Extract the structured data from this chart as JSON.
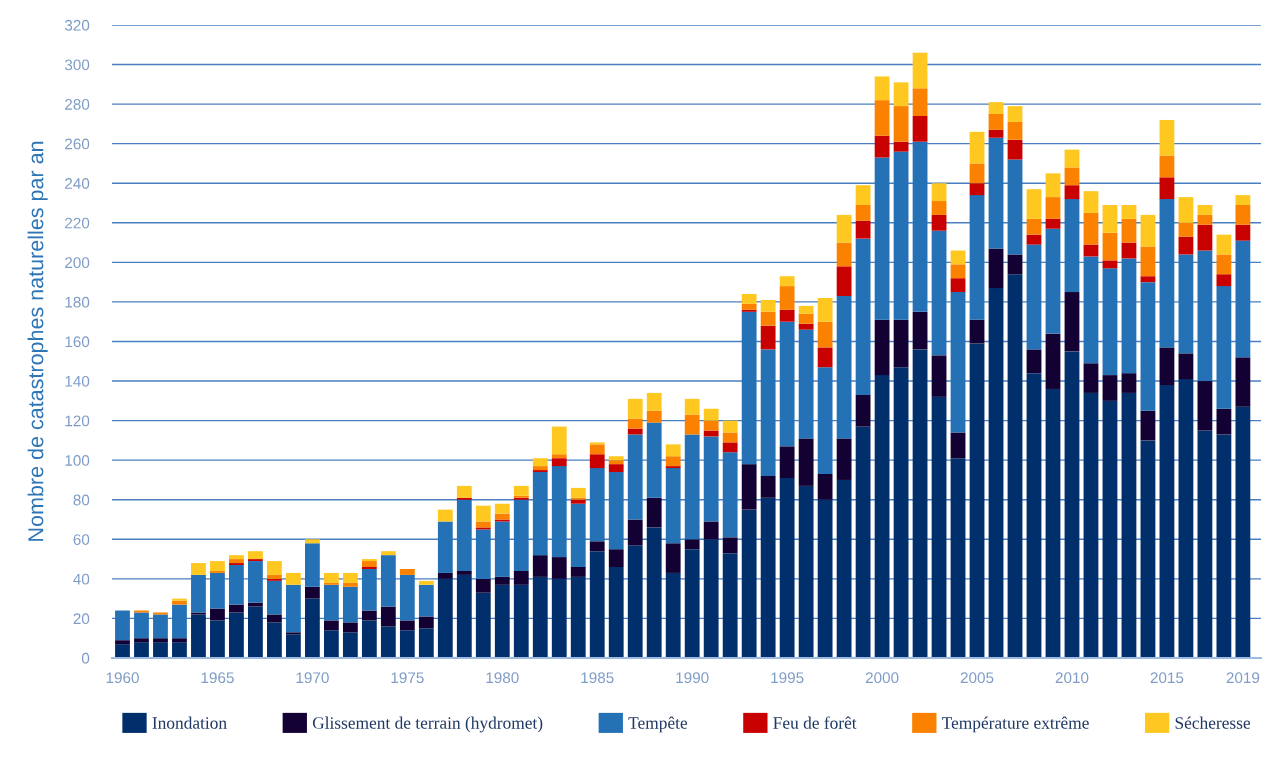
{
  "chart_data": {
    "type": "bar",
    "stacked": true,
    "categories": [
      "1960",
      null,
      null,
      null,
      null,
      "1965",
      null,
      null,
      null,
      null,
      "1970",
      null,
      null,
      null,
      null,
      "1975",
      null,
      null,
      null,
      null,
      "1980",
      null,
      null,
      null,
      null,
      "1985",
      null,
      null,
      null,
      null,
      "1990",
      null,
      null,
      null,
      null,
      "1995",
      null,
      null,
      null,
      null,
      "2000",
      null,
      null,
      null,
      null,
      "2005",
      null,
      null,
      null,
      null,
      "2010",
      null,
      null,
      null,
      null,
      "2015",
      null,
      null,
      null,
      "2019"
    ],
    "ylabel": "Nombre de catastrophes naturelles par an",
    "ylim": [
      0,
      320
    ],
    "yticks": [
      0,
      20,
      40,
      60,
      80,
      100,
      120,
      140,
      160,
      180,
      200,
      220,
      240,
      260,
      280,
      300,
      320
    ],
    "grid": "y",
    "legend": "bottom",
    "series": [
      {
        "name": "Inondation",
        "color": "#002f6c",
        "values": [
          7,
          8,
          8,
          8,
          22,
          19,
          23,
          26,
          18,
          12,
          30,
          14,
          13,
          19,
          16,
          14,
          15,
          40,
          42,
          33,
          37,
          37,
          41,
          40,
          41,
          54,
          46,
          57,
          66,
          43,
          55,
          60,
          53,
          75,
          81,
          91,
          87,
          80,
          90,
          117,
          143,
          147,
          156,
          132,
          101,
          159,
          187,
          194,
          144,
          136,
          155,
          134,
          130,
          134,
          110,
          138,
          141,
          115,
          113,
          127
        ]
      },
      {
        "name": "Glissement de terrain (hydromet)",
        "color": "#130133",
        "values": [
          2,
          2,
          2,
          2,
          1,
          6,
          4,
          2,
          4,
          1,
          6,
          5,
          5,
          5,
          10,
          5,
          6,
          3,
          2,
          7,
          4,
          7,
          11,
          11,
          5,
          5,
          9,
          13,
          15,
          15,
          5,
          9,
          8,
          23,
          11,
          16,
          24,
          13,
          21,
          16,
          28,
          24,
          19,
          21,
          13,
          12,
          20,
          10,
          12,
          28,
          30,
          15,
          13,
          10,
          15,
          19,
          13,
          25,
          13,
          25
        ]
      },
      {
        "name": "Tempête",
        "color": "#2571b5",
        "values": [
          15,
          13,
          12,
          17,
          19,
          18,
          20,
          21,
          17,
          24,
          22,
          18,
          18,
          21,
          26,
          23,
          16,
          26,
          36,
          25,
          28,
          36,
          42,
          46,
          32,
          37,
          39,
          43,
          38,
          38,
          53,
          43,
          43,
          77,
          64,
          63,
          55,
          54,
          72,
          79,
          82,
          85,
          86,
          63,
          71,
          63,
          56,
          48,
          53,
          53,
          47,
          54,
          54,
          58,
          65,
          75,
          50,
          66,
          62,
          59
        ]
      },
      {
        "name": "Feu de forêt",
        "color": "#c80000",
        "values": [
          0,
          0,
          0,
          0,
          0,
          0,
          1,
          1,
          1,
          0,
          0,
          0,
          0,
          1,
          0,
          0,
          0,
          0,
          1,
          1,
          1,
          1,
          1,
          4,
          2,
          7,
          4,
          3,
          0,
          1,
          0,
          3,
          5,
          1,
          12,
          6,
          3,
          10,
          15,
          9,
          11,
          5,
          13,
          8,
          7,
          6,
          4,
          10,
          5,
          5,
          7,
          6,
          4,
          8,
          3,
          11,
          9,
          13,
          6,
          8
        ]
      },
      {
        "name": "Température extrême",
        "color": "#fb8100",
        "values": [
          0,
          1,
          1,
          2,
          0,
          1,
          2,
          0,
          2,
          0,
          0,
          1,
          2,
          3,
          0,
          3,
          0,
          0,
          0,
          3,
          3,
          1,
          2,
          2,
          1,
          5,
          2,
          5,
          6,
          5,
          10,
          5,
          5,
          3,
          7,
          12,
          5,
          13,
          12,
          8,
          18,
          18,
          14,
          7,
          7,
          10,
          8,
          9,
          8,
          11,
          9,
          16,
          14,
          12,
          15,
          11,
          7,
          5,
          10,
          10
        ]
      },
      {
        "name": "Sécheresse",
        "color": "#ffc820",
        "values": [
          0,
          0,
          0,
          1,
          6,
          5,
          2,
          4,
          7,
          6,
          2,
          5,
          5,
          1,
          2,
          0,
          2,
          6,
          6,
          8,
          5,
          5,
          4,
          14,
          5,
          1,
          2,
          10,
          9,
          6,
          8,
          6,
          6,
          5,
          6,
          5,
          4,
          12,
          14,
          10,
          12,
          12,
          18,
          9,
          7,
          16,
          6,
          8,
          15,
          12,
          9,
          11,
          14,
          7,
          16,
          18,
          13,
          5,
          10,
          5
        ]
      }
    ]
  }
}
